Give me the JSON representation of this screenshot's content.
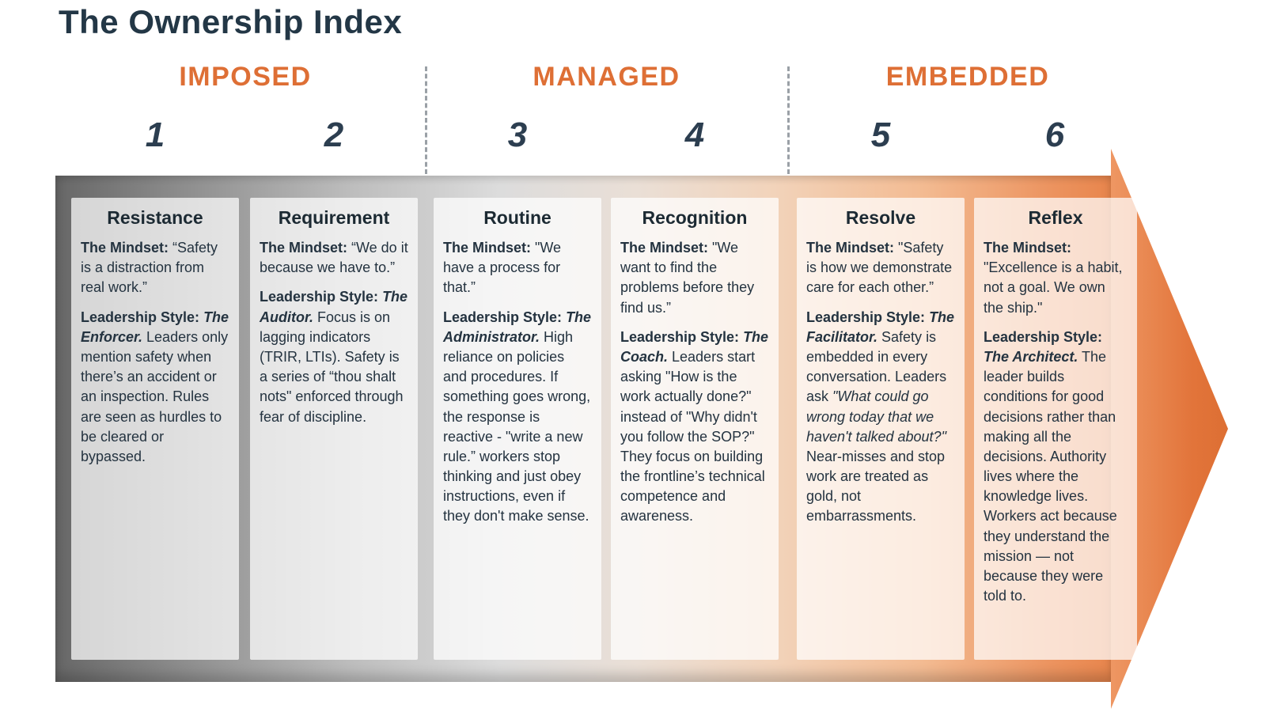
{
  "page": {
    "title": "The Ownership Index"
  },
  "phases": [
    {
      "label": "IMPOSED"
    },
    {
      "label": "MANAGED"
    },
    {
      "label": "EMBEDDED"
    }
  ],
  "stages": [
    "1",
    "2",
    "3",
    "4",
    "5",
    "6"
  ],
  "colors": {
    "accent_orange": "#DE6F35",
    "heading_navy": "#233746",
    "number_navy": "#2C3E50",
    "arrow_gray_start": "#676767",
    "arrow_orange_end": "#DD6F33"
  },
  "cards": [
    {
      "title": "Resistance",
      "paragraphs": [
        [
          {
            "t": "The Mindset:",
            "b": true
          },
          {
            "t": " “Safety is a distraction from real work.”"
          }
        ],
        [
          {
            "t": "Leadership Style: ",
            "b": true
          },
          {
            "t": "The Enforcer.",
            "b": true,
            "i": true
          },
          {
            "t": " Leaders only mention safety when there’s an accident or an inspection. Rules are seen as hurdles to be cleared or bypassed."
          }
        ]
      ]
    },
    {
      "title": "Requirement",
      "paragraphs": [
        [
          {
            "t": "The Mindset:",
            "b": true
          },
          {
            "t": " “We do it because we have to.”"
          }
        ],
        [
          {
            "t": "Leadership Style: ",
            "b": true
          },
          {
            "t": "The Auditor.",
            "b": true,
            "i": true
          },
          {
            "t": " Focus is on lagging indicators (TRIR, LTIs). Safety is a series of “thou shalt nots\" enforced through fear of discipline."
          }
        ]
      ]
    },
    {
      "title": "Routine",
      "paragraphs": [
        [
          {
            "t": "The Mindset:",
            "b": true
          },
          {
            "t": " \"We have a process for that.”"
          }
        ],
        [
          {
            "t": "Leadership Style: ",
            "b": true
          },
          {
            "t": "The Administrator.",
            "b": true,
            "i": true
          },
          {
            "t": " High reliance on policies and procedures. If something goes wrong, the response is reactive - \"write a new rule.” workers stop thinking and just obey instructions, even if they don't make sense."
          }
        ]
      ]
    },
    {
      "title": "Recognition",
      "paragraphs": [
        [
          {
            "t": "The Mindset:",
            "b": true
          },
          {
            "t": " \"We want to find the problems before they find us.”"
          }
        ],
        [
          {
            "t": "Leadership Style: ",
            "b": true
          },
          {
            "t": "The Coach.",
            "b": true,
            "i": true
          },
          {
            "t": " Leaders start asking \"How is the work actually done?\" instead of \"Why didn't you follow the SOP?\" They focus on building the frontline’s technical competence and awareness."
          }
        ]
      ]
    },
    {
      "title": "Resolve",
      "paragraphs": [
        [
          {
            "t": "The Mindset:",
            "b": true
          },
          {
            "t": " \"Safety is how we demonstrate care for each other.”"
          }
        ],
        [
          {
            "t": "Leadership Style: ",
            "b": true
          },
          {
            "t": "The Facilitator.",
            "b": true,
            "i": true
          },
          {
            "t": " Safety is embedded in every conversation. Leaders ask "
          },
          {
            "t": "\"What could go wrong today that we haven't talked about?\"",
            "i": true
          },
          {
            "t": " Near-misses and stop work are treated as gold, not embarrassments."
          }
        ]
      ]
    },
    {
      "title": "Reflex",
      "paragraphs": [
        [
          {
            "t": "The Mindset:",
            "b": true
          },
          {
            "t": " \"Excellence is a habit, not a goal. We own the ship.\""
          }
        ],
        [
          {
            "t": "Leadership Style: ",
            "b": true
          },
          {
            "t": "The Architect.",
            "b": true,
            "i": true
          },
          {
            "t": " The leader builds conditions for good decisions rather than making all the decisions. Authority lives where the knowledge lives. Workers act because they understand the mission — not because they were told to."
          }
        ]
      ]
    }
  ]
}
